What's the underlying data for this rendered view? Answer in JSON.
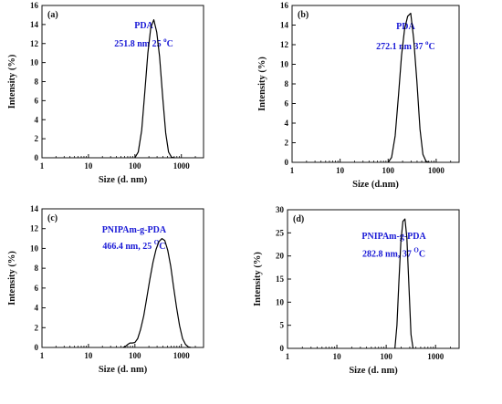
{
  "chart_data": [
    {
      "id": "a",
      "type": "line",
      "panel_label": "(a)",
      "annotation": {
        "line1": "PDA",
        "line2_main": "251.8 nm 25 ",
        "line2_sup": "o",
        "line2_tail": "C"
      },
      "xlabel": "Size (d. nm)",
      "ylabel": "Intensity (%)",
      "xscale": "log",
      "xlim": [
        1,
        3000
      ],
      "ylim": [
        0,
        16
      ],
      "xticks": [
        1,
        10,
        100,
        1000
      ],
      "xtick_labels": [
        "1",
        "10",
        "100",
        "1000"
      ],
      "yticks": [
        0,
        2,
        4,
        6,
        8,
        10,
        12,
        14,
        16
      ],
      "ytick_labels": [
        "0",
        "2",
        "4",
        "6",
        "8",
        "10",
        "12",
        "14",
        "16"
      ],
      "series": [
        {
          "x": [
            100,
            118,
            140,
            164,
            190,
            220,
            255,
            295,
            340,
            396,
            460,
            530,
            615,
            720
          ],
          "y": [
            0,
            0.6,
            2.9,
            7.0,
            11.0,
            13.7,
            14.5,
            13.2,
            10.6,
            6.4,
            2.6,
            0.6,
            0.05,
            0
          ]
        }
      ]
    },
    {
      "id": "b",
      "type": "line",
      "panel_label": "(b)",
      "annotation": {
        "line1": "PDA",
        "line2_main": "272.1 nm  37 ",
        "line2_sup": "o",
        "line2_tail": "C"
      },
      "xlabel": "Size (d.nm)",
      "ylabel": "Intensity (%)",
      "xscale": "log",
      "xlim": [
        1,
        3000
      ],
      "ylim": [
        0,
        16
      ],
      "xticks": [
        1,
        10,
        100,
        1000
      ],
      "xtick_labels": [
        "1",
        "10",
        "100",
        "1000"
      ],
      "yticks": [
        0,
        2,
        4,
        6,
        8,
        10,
        12,
        14,
        16
      ],
      "ytick_labels": [
        "0",
        "2",
        "4",
        "6",
        "8",
        "10",
        "12",
        "14",
        "16"
      ],
      "series": [
        {
          "x": [
            100,
            118,
            140,
            164,
            190,
            220,
            255,
            295,
            340,
            396,
            460,
            530,
            615,
            720
          ],
          "y": [
            0,
            0.5,
            2.7,
            6.8,
            10.9,
            13.6,
            14.9,
            15.2,
            12.6,
            8.3,
            3.4,
            0.8,
            0.1,
            0
          ]
        }
      ]
    },
    {
      "id": "c",
      "type": "line",
      "panel_label": "(c)",
      "annotation": {
        "line1": "PNIPAm-g-PDA",
        "line2_main": "466.4 nm, 25 ",
        "line2_sup": "O",
        "line2_tail": "C"
      },
      "xlabel": "Size (d. nm)",
      "ylabel": "Intensity (%)",
      "xscale": "log",
      "xlim": [
        1,
        3000
      ],
      "ylim": [
        0,
        14
      ],
      "xticks": [
        1,
        10,
        100,
        1000
      ],
      "xtick_labels": [
        "1",
        "10",
        "100",
        "1000"
      ],
      "yticks": [
        0,
        2,
        4,
        6,
        8,
        10,
        12,
        14
      ],
      "ytick_labels": [
        "0",
        "2",
        "4",
        "6",
        "8",
        "10",
        "12",
        "14"
      ],
      "series": [
        {
          "x": [
            55,
            62,
            70,
            78,
            88,
            100,
            115,
            132,
            155,
            180,
            210,
            245,
            285,
            330,
            382,
            440,
            510,
            590,
            680,
            790,
            915,
            1060,
            1230,
            1420,
            1600
          ],
          "y": [
            0,
            0.1,
            0.3,
            0.45,
            0.45,
            0.5,
            0.9,
            1.8,
            3.2,
            5.0,
            6.9,
            8.6,
            9.9,
            10.7,
            11.0,
            10.8,
            9.8,
            8.2,
            6.1,
            4.0,
            2.2,
            0.9,
            0.3,
            0.05,
            0
          ]
        }
      ]
    },
    {
      "id": "d",
      "type": "line",
      "panel_label": "(d)",
      "annotation": {
        "line1": "PNIPAm-g-PDA",
        "line2_main": "282.8 nm, 37 ",
        "line2_sup": "O",
        "line2_tail": "C"
      },
      "xlabel": "Size (d. nm)",
      "ylabel": "Intensity (%)",
      "xscale": "log",
      "xlim": [
        1,
        3000
      ],
      "ylim": [
        0,
        30
      ],
      "xticks": [
        1,
        10,
        100,
        1000
      ],
      "xtick_labels": [
        "1",
        "10",
        "100",
        "1000"
      ],
      "yticks": [
        0,
        5,
        10,
        15,
        20,
        25,
        30
      ],
      "ytick_labels": [
        "0",
        "5",
        "10",
        "15",
        "20",
        "25",
        "30"
      ],
      "series": [
        {
          "x": [
            150,
            165,
            180,
            198,
            218,
            240,
            262,
            290,
            318,
            350
          ],
          "y": [
            0,
            5,
            14,
            23,
            27.5,
            28,
            24,
            13,
            3,
            0
          ]
        }
      ]
    }
  ]
}
